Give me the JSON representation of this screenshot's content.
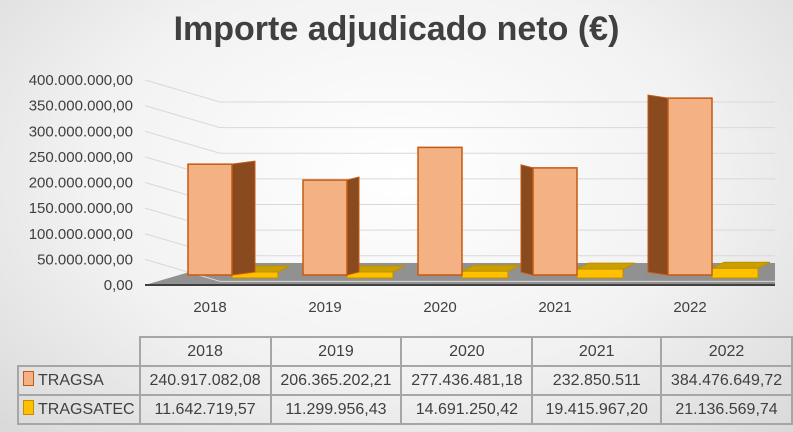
{
  "chart_data": {
    "type": "bar",
    "title": "Importe adjudicado neto (€)",
    "categories": [
      "2018",
      "2019",
      "2020",
      "2021",
      "2022"
    ],
    "series": [
      {
        "name": "TRAGSA",
        "color": "#f4b183",
        "edge": "#c55a11",
        "values": [
          240917082.08,
          206365202.21,
          277436481.18,
          232850511,
          384476649.72
        ],
        "labels": [
          "240.917.082,08",
          "206.365.202,21",
          "277.436.481,18",
          "232.850.511",
          "384.476.649,72"
        ]
      },
      {
        "name": "TRAGSATEC",
        "color": "#ffc000",
        "edge": "#bf9000",
        "values": [
          11642719.57,
          11299956.43,
          14691250.42,
          19415967.2,
          21136569.74
        ],
        "labels": [
          "11.642.719,57",
          "11.299.956,43",
          "14.691.250,42",
          "19.415.967,20",
          "21.136.569,74"
        ]
      }
    ],
    "ylim": [
      0,
      400000000
    ],
    "yticks": [
      "0,00",
      "50.000.000,00",
      "100.000.000,00",
      "150.000.000,00",
      "200.000.000,00",
      "250.000.000,00",
      "300.000.000,00",
      "350.000.000,00",
      "400.000.000,00"
    ],
    "grid": true,
    "legend": "data-table",
    "style": "3d-column"
  }
}
